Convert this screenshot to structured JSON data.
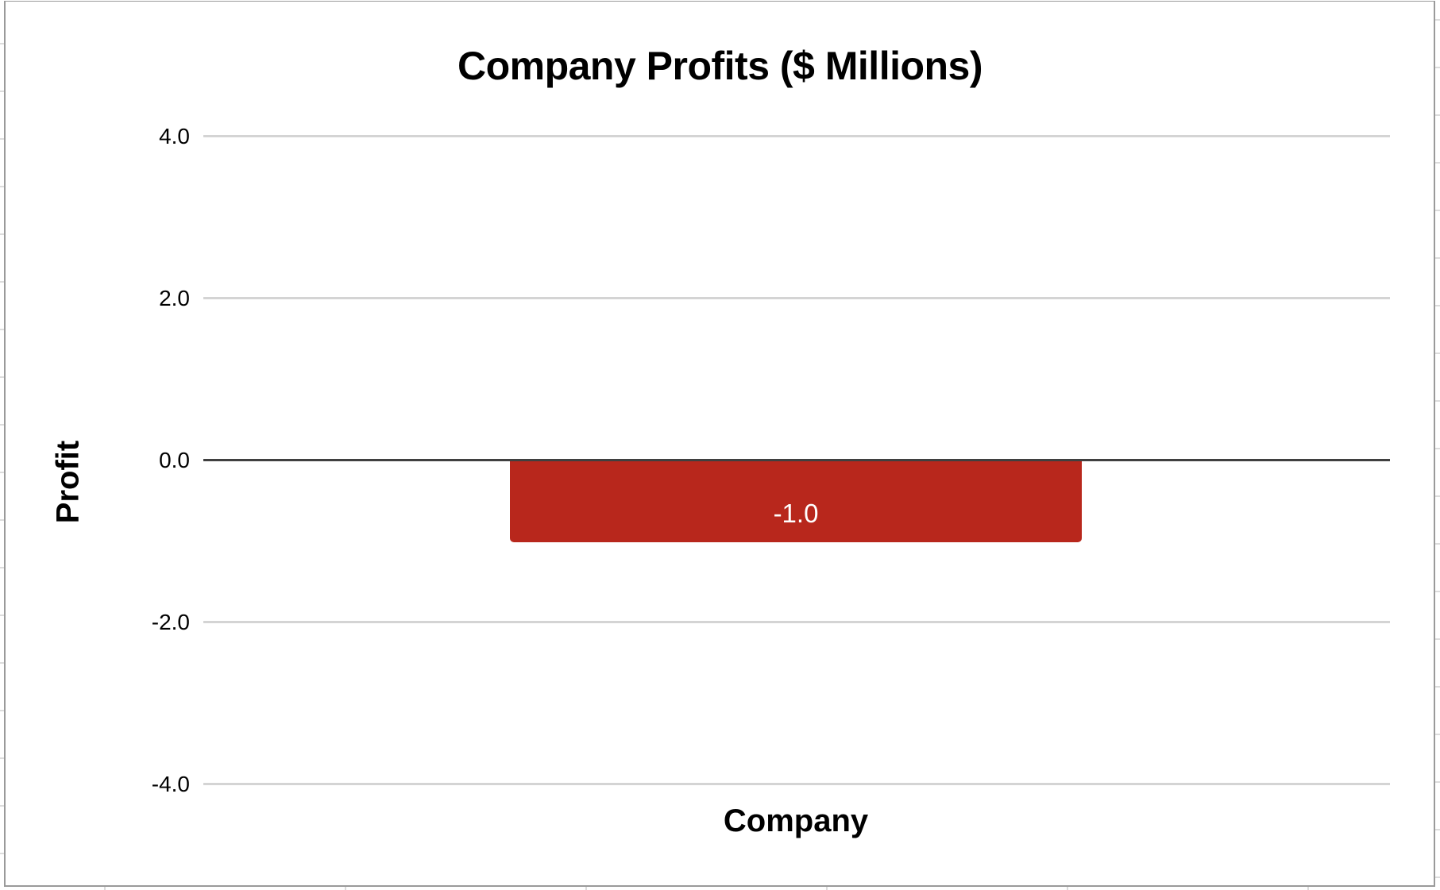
{
  "chart_data": {
    "type": "bar",
    "title": "Company Profits ($ Millions)",
    "xlabel": "Company",
    "ylabel": "Profit",
    "categories": [
      ""
    ],
    "values": [
      -1.0
    ],
    "data_labels": [
      "-1.0"
    ],
    "ylim": [
      -4.0,
      4.0
    ],
    "yticks": [
      4.0,
      2.0,
      0.0,
      -2.0,
      -4.0
    ],
    "ytick_labels": [
      "4.0",
      "2.0",
      "0.0",
      "-2.0",
      "-4.0"
    ],
    "grid": true,
    "legend": "none",
    "colors": {
      "bar": "#b8271c",
      "gridline": "#d4d4d4",
      "zero_line": "#404040",
      "data_label": "#ffffff"
    }
  },
  "labels": {
    "title": "Company Profits ($ Millions)",
    "x_axis_title": "Company",
    "y_axis_title": "Profit",
    "bar_value": "-1.0",
    "ticks": [
      "4.0",
      "2.0",
      "0.0",
      "-2.0",
      "-4.0"
    ]
  }
}
